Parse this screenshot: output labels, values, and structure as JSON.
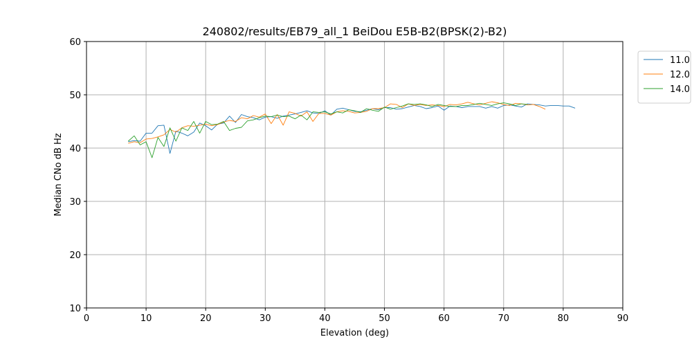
{
  "chart_data": {
    "type": "line",
    "title": "240802/results/EB79_all_1 BeiDou E5B-B2(BPSK(2)-B2)",
    "xlabel": "Elevation (deg)",
    "ylabel": "Median CNo dB Hz",
    "xlim": [
      0,
      90
    ],
    "ylim": [
      10,
      60
    ],
    "xticks": [
      0,
      10,
      20,
      30,
      40,
      50,
      60,
      70,
      80,
      90
    ],
    "yticks": [
      10,
      20,
      30,
      40,
      50,
      60
    ],
    "grid": true,
    "legend_position": "top-right, outside plot",
    "series": [
      {
        "name": "11.0",
        "color": "#1f77b4",
        "x": [
          7,
          8,
          9,
          10,
          11,
          12,
          13,
          14,
          15,
          16,
          17,
          18,
          19,
          20,
          21,
          22,
          23,
          24,
          25,
          26,
          27,
          28,
          29,
          30,
          31,
          32,
          33,
          34,
          35,
          36,
          37,
          38,
          39,
          40,
          41,
          42,
          43,
          44,
          45,
          46,
          47,
          48,
          49,
          50,
          51,
          52,
          53,
          54,
          55,
          56,
          57,
          58,
          59,
          60,
          61,
          62,
          63,
          64,
          65,
          66,
          67,
          68,
          69,
          70,
          71,
          72,
          73,
          74,
          75,
          76,
          77,
          78,
          79,
          80,
          81,
          82
        ],
        "y": [
          41.2,
          41.4,
          41.3,
          42.8,
          42.8,
          44.2,
          44.3,
          39.0,
          43.2,
          42.8,
          42.3,
          43.0,
          44.7,
          44.2,
          43.4,
          44.5,
          44.7,
          46.0,
          44.8,
          46.3,
          45.9,
          45.7,
          45.3,
          45.8,
          45.9,
          45.6,
          46.0,
          46.2,
          46.4,
          46.7,
          47.0,
          46.6,
          46.5,
          47.0,
          46.2,
          47.3,
          47.5,
          47.2,
          46.9,
          46.8,
          47.1,
          47.4,
          47.2,
          47.6,
          47.6,
          47.3,
          47.4,
          47.7,
          48.0,
          47.8,
          47.4,
          47.6,
          47.9,
          47.1,
          47.9,
          47.8,
          47.6,
          47.8,
          47.8,
          47.8,
          47.5,
          47.8,
          47.5,
          48.0,
          48.1,
          47.9,
          47.7,
          48.3,
          48.2,
          48.1,
          47.9,
          48.0,
          48.0,
          47.9,
          47.9,
          47.5
        ]
      },
      {
        "name": "12.0",
        "color": "#ff7f0e",
        "x": [
          7,
          8,
          9,
          10,
          11,
          12,
          13,
          14,
          15,
          16,
          17,
          18,
          19,
          20,
          21,
          22,
          23,
          24,
          25,
          26,
          27,
          28,
          29,
          30,
          31,
          32,
          33,
          34,
          35,
          36,
          37,
          38,
          39,
          40,
          41,
          42,
          43,
          44,
          45,
          46,
          47,
          48,
          49,
          50,
          51,
          52,
          53,
          54,
          55,
          56,
          57,
          58,
          59,
          60,
          61,
          62,
          63,
          64,
          65,
          66,
          67,
          68,
          69,
          70,
          71,
          72,
          73,
          74,
          75,
          76,
          77
        ],
        "y": [
          40.9,
          41.2,
          41.0,
          41.7,
          41.8,
          42.1,
          42.5,
          43.5,
          43.0,
          43.8,
          44.2,
          44.1,
          44.3,
          44.5,
          44.2,
          44.4,
          44.9,
          45.2,
          45.0,
          45.7,
          45.5,
          46.1,
          45.8,
          46.4,
          44.6,
          46.3,
          44.3,
          46.8,
          46.5,
          46.0,
          46.8,
          45.0,
          46.5,
          46.5,
          46.2,
          46.8,
          47.0,
          46.9,
          46.6,
          46.7,
          46.9,
          47.4,
          47.4,
          47.6,
          48.3,
          48.2,
          47.6,
          48.3,
          48.0,
          48.2,
          48.0,
          48.1,
          48.0,
          47.8,
          48.2,
          48.1,
          48.3,
          48.6,
          48.3,
          48.1,
          48.4,
          48.7,
          48.5,
          48.2,
          48.0,
          48.4,
          48.3,
          48.1,
          48.2,
          47.8,
          47.3
        ]
      },
      {
        "name": "14.0",
        "color": "#2ca02c",
        "x": [
          7,
          8,
          9,
          10,
          11,
          12,
          13,
          14,
          15,
          16,
          17,
          18,
          19,
          20,
          21,
          22,
          23,
          24,
          25,
          26,
          27,
          28,
          29,
          30,
          31,
          32,
          33,
          34,
          35,
          36,
          37,
          38,
          39,
          40,
          41,
          42,
          43,
          44,
          45,
          46,
          47,
          48,
          49,
          50,
          51,
          52,
          53,
          54,
          55,
          56,
          57,
          58,
          59,
          60,
          61,
          62,
          63,
          64,
          65,
          66,
          67,
          68,
          69,
          70,
          71,
          72,
          73,
          74
        ],
        "y": [
          41.3,
          42.3,
          40.6,
          41.2,
          38.2,
          42.0,
          40.3,
          43.8,
          41.3,
          43.8,
          43.3,
          45.0,
          42.8,
          45.0,
          44.4,
          44.5,
          45.0,
          43.3,
          43.7,
          43.9,
          45.1,
          45.3,
          45.7,
          46.0,
          45.9,
          46.2,
          45.9,
          46.0,
          45.5,
          46.2,
          45.3,
          46.8,
          46.7,
          46.8,
          46.4,
          46.8,
          46.6,
          47.2,
          47.0,
          46.7,
          47.4,
          47.1,
          46.9,
          47.7,
          47.3,
          47.6,
          47.9,
          48.3,
          48.2,
          48.3,
          48.1,
          47.8,
          48.2,
          48.0,
          47.8,
          47.8,
          48.0,
          48.0,
          48.2,
          48.4,
          48.2,
          48.0,
          48.3,
          48.5,
          48.3,
          48.0,
          48.3,
          48.2
        ]
      }
    ]
  }
}
